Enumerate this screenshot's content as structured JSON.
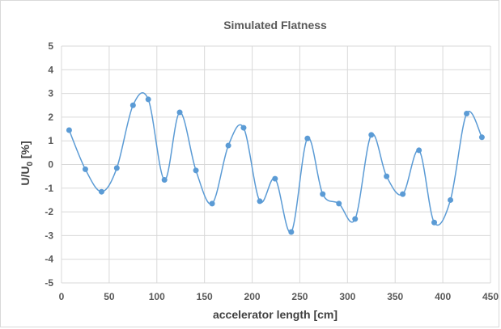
{
  "chart_data": {
    "type": "scatter",
    "title": "Simulated Flatness",
    "xlabel": "accelerator length [cm]",
    "ylabel_parts": {
      "main": "U/U",
      "sub": "0",
      "unit": " [%]"
    },
    "xlim": [
      0,
      450
    ],
    "ylim": [
      -5,
      5
    ],
    "x_ticks": [
      0,
      50,
      100,
      150,
      200,
      250,
      300,
      350,
      400,
      450
    ],
    "y_ticks": [
      -5,
      -4,
      -3,
      -2,
      -1,
      0,
      1,
      2,
      3,
      4,
      5
    ],
    "grid": true,
    "smoothed_line": true,
    "series_color": "#5b9bd5",
    "series": [
      {
        "x": [
          8,
          25,
          42,
          58,
          75,
          91,
          108,
          124,
          141,
          158,
          175,
          191,
          208,
          224,
          241,
          258,
          274,
          291,
          308,
          325,
          341,
          358,
          375,
          391,
          408,
          425,
          441
        ],
        "y": [
          1.45,
          -0.2,
          -1.15,
          -0.15,
          2.5,
          2.75,
          -0.65,
          2.2,
          -0.25,
          -1.65,
          0.8,
          1.55,
          -1.55,
          -0.6,
          -2.85,
          1.1,
          -1.25,
          -1.65,
          -2.3,
          1.25,
          -0.5,
          -1.25,
          0.6,
          -2.45,
          -1.5,
          2.15,
          1.15
        ]
      }
    ]
  }
}
